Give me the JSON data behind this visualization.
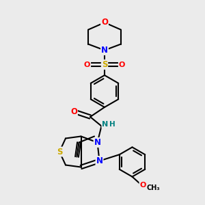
{
  "background_color": "#ebebeb",
  "atom_colors": {
    "C": "#000000",
    "H": "#000000",
    "N": "#0000ff",
    "O": "#ff0000",
    "S_sulfonyl": "#ccaa00",
    "S_thio": "#ccaa00",
    "NH": "#008080"
  },
  "bond_color": "#000000",
  "figsize": [
    3.0,
    3.0
  ],
  "dpi": 100,
  "xlim": [
    0,
    10
  ],
  "ylim": [
    0,
    10
  ]
}
